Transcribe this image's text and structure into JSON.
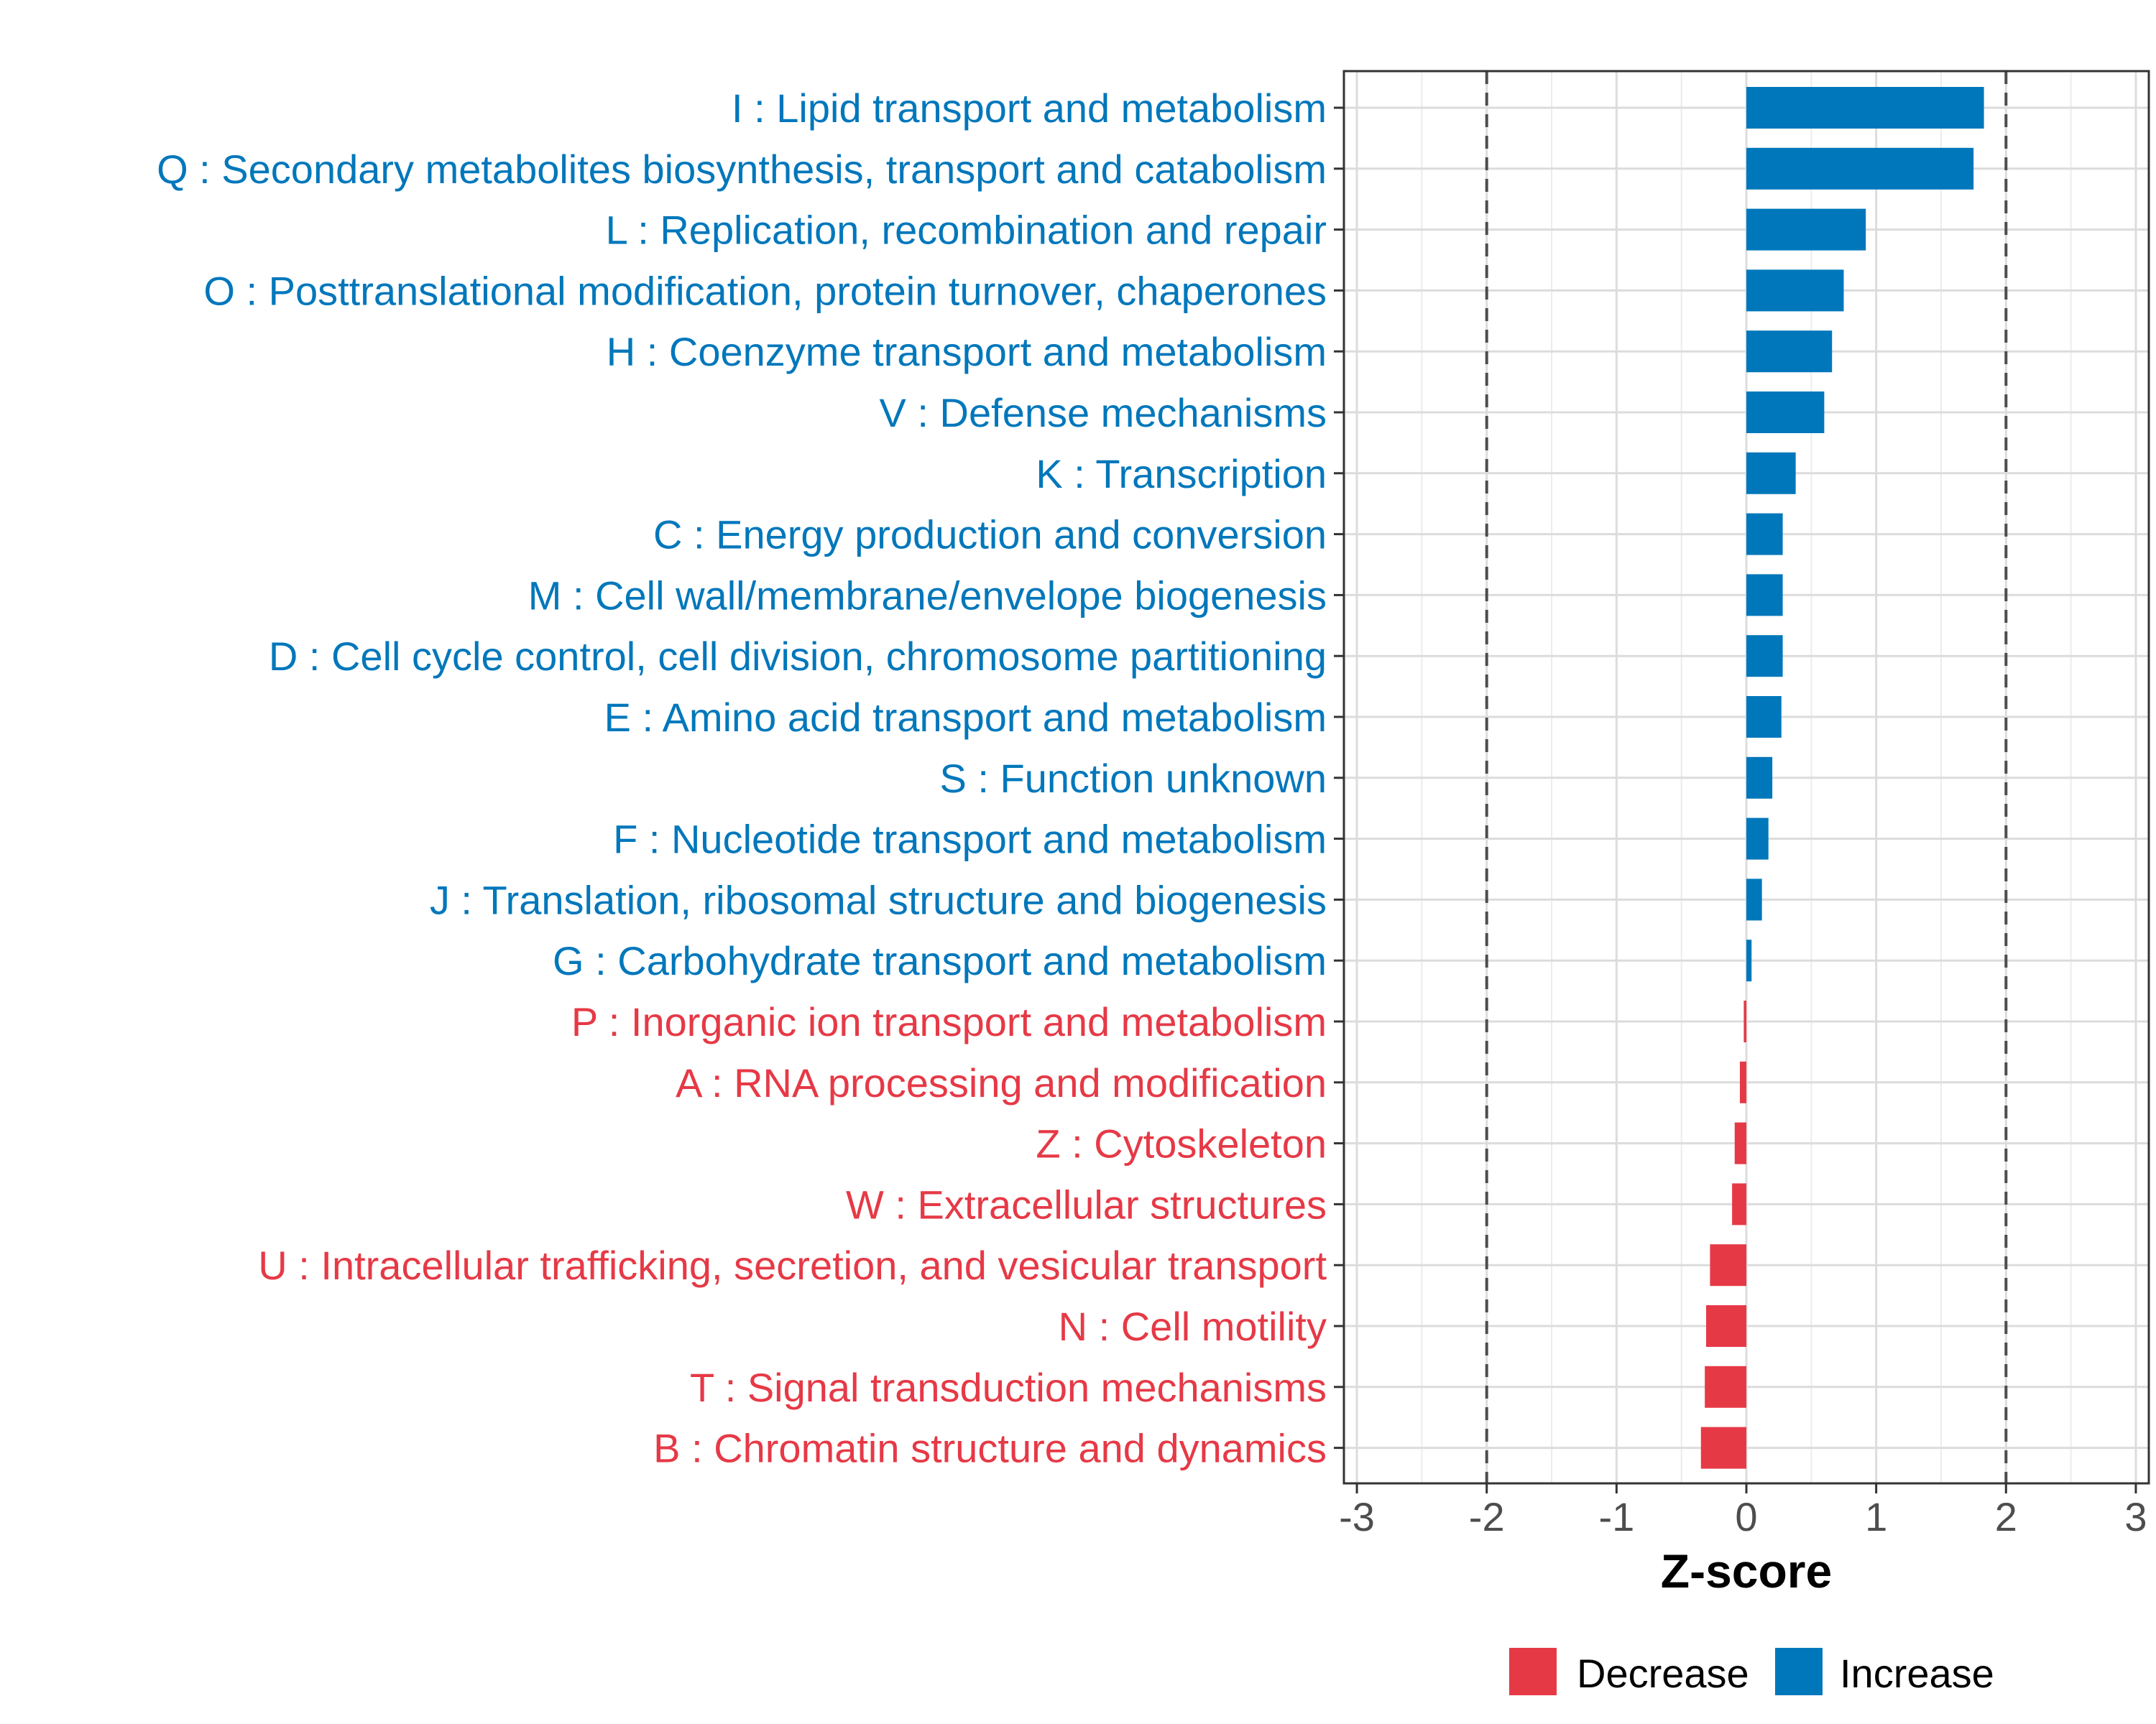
{
  "chart_data": {
    "type": "bar",
    "orientation": "horizontal",
    "xlabel": "Z-score",
    "xlim": [
      -3.1,
      3.1
    ],
    "xticks": [
      -3,
      -2,
      -1,
      0,
      1,
      2,
      3
    ],
    "reference_lines": [
      -2,
      2
    ],
    "grid": true,
    "colors": {
      "Increase": "#0077BB",
      "Decrease": "#E63946"
    },
    "categories": [
      {
        "label": "I : Lipid transport and metabolism",
        "value": 1.83,
        "group": "Increase"
      },
      {
        "label": "Q : Secondary metabolites biosynthesis, transport and catabolism",
        "value": 1.75,
        "group": "Increase"
      },
      {
        "label": "L : Replication, recombination and repair",
        "value": 0.92,
        "group": "Increase"
      },
      {
        "label": "O : Posttranslational modification, protein turnover, chaperones",
        "value": 0.75,
        "group": "Increase"
      },
      {
        "label": "H : Coenzyme transport and metabolism",
        "value": 0.66,
        "group": "Increase"
      },
      {
        "label": "V : Defense mechanisms",
        "value": 0.6,
        "group": "Increase"
      },
      {
        "label": "K : Transcription",
        "value": 0.38,
        "group": "Increase"
      },
      {
        "label": "C : Energy production and conversion",
        "value": 0.28,
        "group": "Increase"
      },
      {
        "label": "M : Cell wall/membrane/envelope biogenesis",
        "value": 0.28,
        "group": "Increase"
      },
      {
        "label": "D : Cell cycle control, cell division, chromosome partitioning",
        "value": 0.28,
        "group": "Increase"
      },
      {
        "label": "E : Amino acid transport and metabolism",
        "value": 0.27,
        "group": "Increase"
      },
      {
        "label": "S : Function unknown",
        "value": 0.2,
        "group": "Increase"
      },
      {
        "label": "F : Nucleotide transport and metabolism",
        "value": 0.17,
        "group": "Increase"
      },
      {
        "label": "J : Translation, ribosomal structure and biogenesis",
        "value": 0.12,
        "group": "Increase"
      },
      {
        "label": "G : Carbohydrate transport and metabolism",
        "value": 0.04,
        "group": "Increase"
      },
      {
        "label": "P : Inorganic ion transport and metabolism",
        "value": -0.02,
        "group": "Decrease"
      },
      {
        "label": "A : RNA processing and modification",
        "value": -0.05,
        "group": "Decrease"
      },
      {
        "label": "Z : Cytoskeleton",
        "value": -0.09,
        "group": "Decrease"
      },
      {
        "label": "W : Extracellular structures",
        "value": -0.11,
        "group": "Decrease"
      },
      {
        "label": "U : Intracellular trafficking, secretion, and vesicular transport",
        "value": -0.28,
        "group": "Decrease"
      },
      {
        "label": "N : Cell motility",
        "value": -0.31,
        "group": "Decrease"
      },
      {
        "label": "T : Signal transduction mechanisms",
        "value": -0.32,
        "group": "Decrease"
      },
      {
        "label": "B : Chromatin structure and dynamics",
        "value": -0.35,
        "group": "Decrease"
      }
    ],
    "legend": {
      "position": "bottom",
      "entries": [
        {
          "label": "Decrease",
          "color": "#E63946"
        },
        {
          "label": "Increase",
          "color": "#0077BB"
        }
      ]
    }
  }
}
